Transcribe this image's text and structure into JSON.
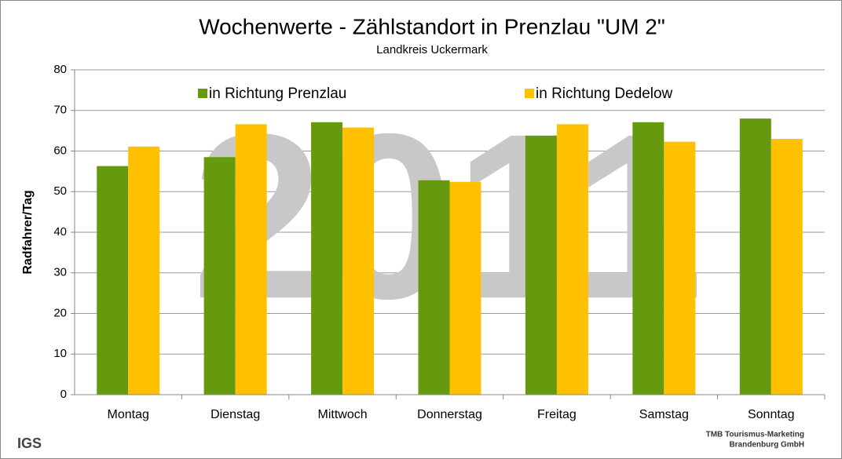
{
  "chart_data": {
    "type": "bar",
    "title": "Wochenwerte - Zählstandort in Prenzlau \"UM 2\"",
    "subtitle": "Landkreis Uckermark",
    "y_label": "Radfahrer/Tag",
    "watermark": "2011",
    "categories": [
      "Montag",
      "Dienstag",
      "Mittwoch",
      "Donnerstag",
      "Freitag",
      "Samstag",
      "Sonntag"
    ],
    "series": [
      {
        "name": "in Richtung Prenzlau",
        "color": "#669a0e",
        "values": [
          56.3,
          58.5,
          67.1,
          52.8,
          63.8,
          67.1,
          68.0
        ]
      },
      {
        "name": "in Richtung Dedelow",
        "color": "#ffc000",
        "values": [
          61.1,
          66.6,
          65.8,
          52.4,
          66.6,
          62.3,
          63.0
        ]
      }
    ],
    "ylim": [
      0,
      80
    ],
    "yticks": [
      0,
      10,
      20,
      30,
      40,
      50,
      60,
      70,
      80
    ],
    "grid": true,
    "legend": "top",
    "logos": {
      "left": "IGS",
      "right": [
        "TMB Tourismus-Marketing",
        "Brandenburg GmbH"
      ]
    }
  }
}
